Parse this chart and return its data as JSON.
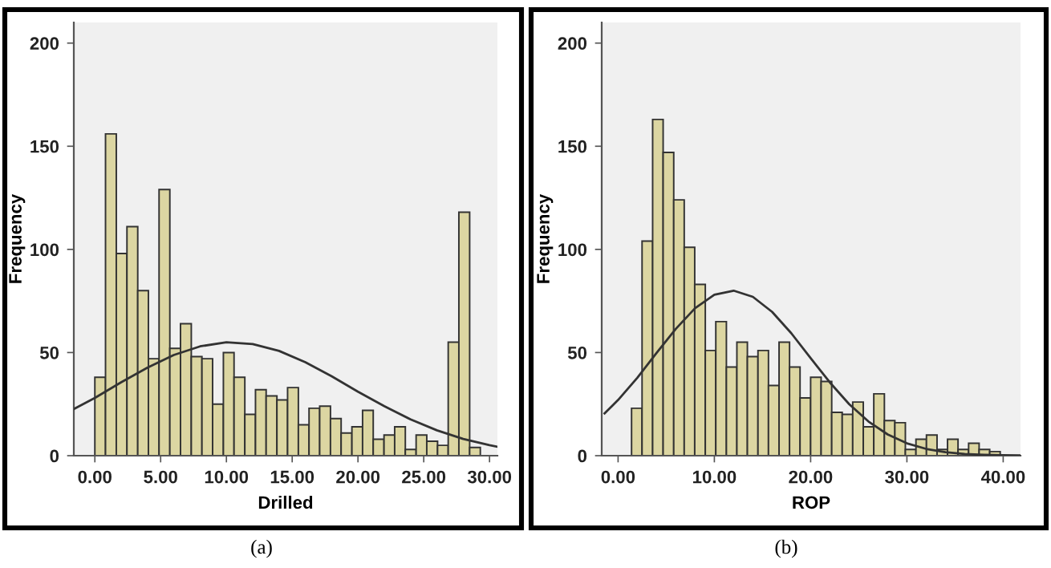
{
  "chart_data": [
    {
      "type": "histogram",
      "xlabel": "Drilled",
      "ylabel": "Frequency",
      "color": "#dcd6a2",
      "grid": false,
      "annotations": [
        "(a)"
      ],
      "bins": [
        0,
        0.81,
        1.63,
        2.44,
        3.26,
        4.07,
        4.88,
        5.7,
        6.51,
        7.33,
        8.14,
        8.95,
        9.77,
        10.58,
        11.4,
        12.21,
        13.02,
        13.84,
        14.65,
        15.47,
        16.28,
        17.09,
        17.91,
        18.72,
        19.54,
        20.35,
        21.16,
        21.98,
        22.79,
        23.6,
        24.42,
        25.23,
        26.05,
        26.86,
        27.67,
        28.49,
        29.3
      ],
      "values": [
        38,
        156,
        98,
        111,
        80,
        47,
        129,
        52,
        64,
        48,
        47,
        25,
        50,
        38,
        20,
        32,
        29,
        27,
        33,
        15,
        23,
        24,
        18,
        11,
        14,
        22,
        8,
        10,
        14,
        3,
        10,
        7,
        5,
        55,
        118,
        4
      ],
      "series": [
        {
          "type": "line",
          "color": "#333333",
          "x": [
            -1.6,
            0,
            2,
            4,
            6,
            8,
            10,
            12,
            14,
            16,
            18,
            20,
            22,
            24,
            26,
            28,
            30,
            30.6
          ],
          "values": [
            22.6,
            28,
            35.6,
            42.7,
            48.8,
            53,
            55,
            54.1,
            50.8,
            45.3,
            38.5,
            31,
            24,
            17.6,
            12.3,
            8.1,
            5.1,
            4.3
          ]
        }
      ],
      "xlim": [
        -1.6,
        30.6
      ],
      "ylim": [
        0,
        210
      ],
      "xticks": [
        {
          "value": 0,
          "label": "0.00"
        },
        {
          "value": 5,
          "label": "5.00"
        },
        {
          "value": 10,
          "label": "10.00"
        },
        {
          "value": 15,
          "label": "15.00"
        },
        {
          "value": 20,
          "label": "20.00"
        },
        {
          "value": 25,
          "label": "25.00"
        },
        {
          "value": 30,
          "label": "30.00"
        }
      ],
      "yticks": [
        0,
        50,
        100,
        150,
        200
      ]
    },
    {
      "type": "histogram",
      "xlabel": "ROP",
      "ylabel": "Frequency",
      "color": "#dcd6a2",
      "grid": false,
      "annotations": [
        "(b)"
      ],
      "bins": [
        1.4,
        2.49,
        3.59,
        4.68,
        5.78,
        6.87,
        7.96,
        9.06,
        10.15,
        11.25,
        12.34,
        13.43,
        14.53,
        15.62,
        16.72,
        17.81,
        18.9,
        20.0,
        21.09,
        22.19,
        23.28,
        24.37,
        25.47,
        26.56,
        27.66,
        28.75,
        29.84,
        30.94,
        32.03,
        33.13,
        34.22,
        35.31,
        36.41,
        37.5,
        38.6,
        39.69
      ],
      "values": [
        23,
        104,
        163,
        147,
        124,
        101,
        83,
        51,
        65,
        43,
        55,
        48,
        51,
        34,
        55,
        43,
        28,
        38,
        36,
        21,
        20,
        26,
        14,
        30,
        17,
        16,
        3,
        8,
        10,
        3,
        8,
        3,
        6,
        3,
        2
      ],
      "series": [
        {
          "type": "line",
          "color": "#333333",
          "x": [
            -1.4,
            0,
            2,
            4,
            6,
            8,
            10,
            12,
            14,
            16,
            18,
            20,
            22,
            24,
            26,
            28,
            30,
            32,
            34,
            36,
            38,
            40,
            41.8
          ],
          "values": [
            20.5,
            27,
            37.8,
            49.8,
            61.5,
            71.5,
            78,
            80,
            77,
            69.7,
            59.3,
            47.3,
            35.5,
            25,
            16.6,
            10.3,
            6,
            3.3,
            1.7,
            0.8,
            0.4,
            0.2,
            0.1
          ]
        }
      ],
      "xlim": [
        -1.7,
        41.8
      ],
      "ylim": [
        0,
        210
      ],
      "xticks": [
        {
          "value": 0,
          "label": "0.00"
        },
        {
          "value": 10,
          "label": "10.00"
        },
        {
          "value": 20,
          "label": "20.00"
        },
        {
          "value": 30,
          "label": "30.00"
        },
        {
          "value": 40,
          "label": "40.00"
        }
      ],
      "yticks": [
        0,
        50,
        100,
        150,
        200
      ]
    }
  ]
}
